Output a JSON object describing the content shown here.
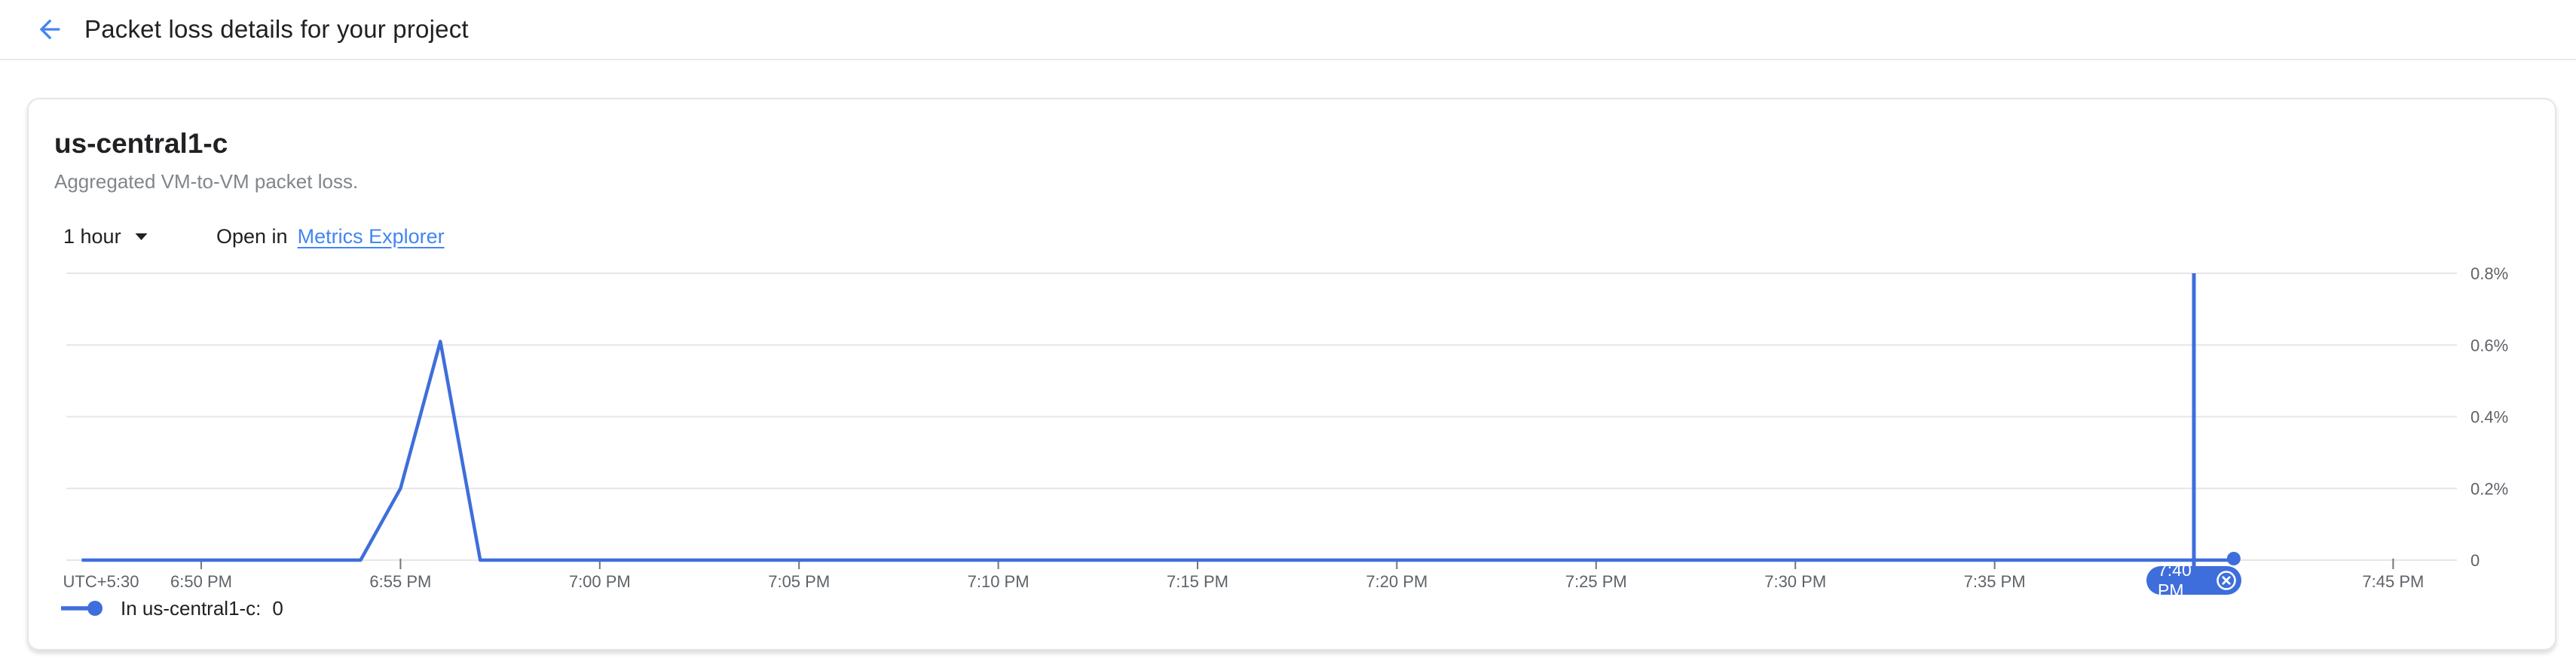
{
  "header": {
    "title": "Packet loss details for your project"
  },
  "card": {
    "title": "us-central1-c",
    "subtitle": "Aggregated VM-to-VM packet loss.",
    "time_range_label": "1 hour",
    "open_in_prefix": "Open in",
    "open_in_link": "Metrics Explorer",
    "legend_label": "In us-central1-c:",
    "legend_value": "0"
  },
  "chart_data": {
    "type": "line",
    "title": "us-central1-c",
    "x_axis": {
      "timezone_label": "UTC+5:30",
      "tick_labels": [
        "6:50 PM",
        "6:55 PM",
        "7:00 PM",
        "7:05 PM",
        "7:10 PM",
        "7:15 PM",
        "7:20 PM",
        "7:25 PM",
        "7:30 PM",
        "7:35 PM",
        "7:40 PM",
        "7:45 PM"
      ]
    },
    "y_axis": {
      "unit": "%",
      "min": 0,
      "max": 0.8,
      "tick_values": [
        0.8,
        0.6,
        0.4,
        0.2,
        0
      ],
      "tick_labels": [
        "0.8%",
        "0.6%",
        "0.4%",
        "0.2%",
        "0"
      ]
    },
    "series": [
      {
        "name": "In us-central1-c",
        "color": "#3e6edb",
        "end_dot": true,
        "points": [
          {
            "t": "6:47 PM",
            "v": 0
          },
          {
            "t": "6:54 PM",
            "v": 0
          },
          {
            "t": "6:55 PM",
            "v": 0.2
          },
          {
            "t": "6:56 PM",
            "v": 0.61
          },
          {
            "t": "6:57 PM",
            "v": 0
          },
          {
            "t": "7:41 PM",
            "v": 0
          }
        ]
      }
    ],
    "selected_time": {
      "label": "7:40 PM",
      "t": "7:40 PM",
      "value": 0
    },
    "grid": true,
    "legend_position": "bottom-left"
  },
  "colors": {
    "accent_blue": "#4285f4",
    "chart_line": "#3e6edb",
    "selected_pill": "#3e6edb",
    "gridline": "#e6e6e6",
    "tick_mark": "#757575",
    "axis_text": "#5f6368"
  }
}
